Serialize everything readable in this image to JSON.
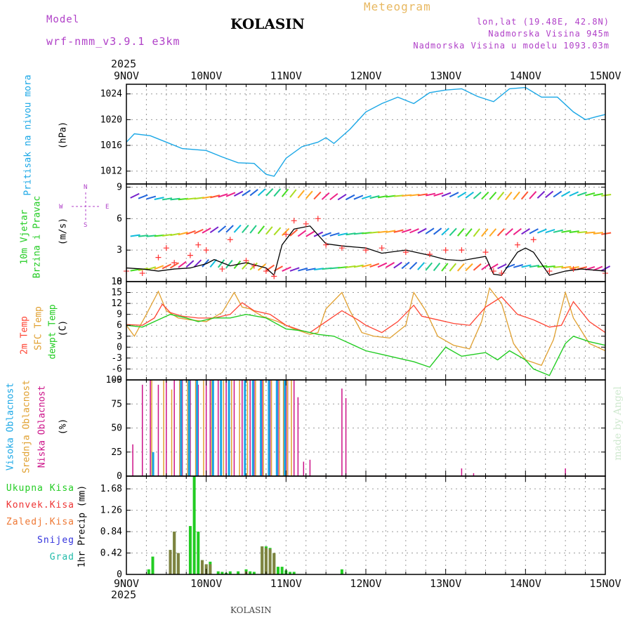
{
  "header": {
    "model_label": "Model",
    "model_name": "wrf-nmm_v3.9.1 e3km",
    "station": "KOLASIN",
    "meteogram": "Meteogram",
    "coords": "lon,lat (19.48E, 42.8N)",
    "altitude": "Nadmorska Visina 945m",
    "model_altitude": "Nadmorska Visina u modelu 1093.03m",
    "year_top": "2025",
    "year_bottom": "2025",
    "footer_station": "KOLASIN",
    "watermark": "made by Angel"
  },
  "colors": {
    "pressure": "#1aa7e6",
    "wind_green": "#22cc22",
    "wind_gust": "#ff3333",
    "temp2m": "#ff4433",
    "sfc": "#e0a030",
    "dew": "#22cc22",
    "cloud_high": "#1aa7e6",
    "cloud_mid": "#e0a030",
    "cloud_low": "#cc1188",
    "header_purple": "#b040c8",
    "header_orange": "#e8b860"
  },
  "chart_data": [
    {
      "type": "line",
      "title": "Pritisak na nivou mora",
      "ylabel": "(hPa)",
      "ylim": [
        1010,
        1025.5
      ],
      "yticks": [
        "1024",
        "1020",
        "1016",
        "1012"
      ],
      "x_dates": [
        "9NOV",
        "10NOV",
        "11NOV",
        "12NOV",
        "13NOV",
        "14NOV",
        "15NOV"
      ],
      "series": [
        {
          "name": "pressure",
          "x": [
            0,
            0.1,
            0.3,
            0.5,
            0.7,
            1.0,
            1.2,
            1.4,
            1.6,
            1.75,
            1.85,
            2.0,
            2.2,
            2.4,
            2.5,
            2.6,
            2.8,
            3.0,
            3.2,
            3.4,
            3.6,
            3.8,
            4.0,
            4.2,
            4.4,
            4.6,
            4.8,
            5.0,
            5.2,
            5.4,
            5.6,
            5.75,
            5.9,
            6.0
          ],
          "values": [
            1016.5,
            1017.8,
            1017.5,
            1016.5,
            1015.5,
            1015.2,
            1014.2,
            1013.3,
            1013.2,
            1011.5,
            1011.2,
            1014.0,
            1015.8,
            1016.5,
            1017.2,
            1016.3,
            1018.5,
            1021.2,
            1022.5,
            1023.5,
            1022.5,
            1024.2,
            1024.6,
            1024.8,
            1023.6,
            1022.8,
            1024.8,
            1025.0,
            1023.5,
            1023.5,
            1021.2,
            1020.0,
            1020.5,
            1020.8
          ]
        }
      ]
    },
    {
      "type": "line",
      "title": "10m Vjetar Brzina i Pravac",
      "ylabel": "(m/s)",
      "ylim": [
        0,
        9.3
      ],
      "yticks": [
        "9",
        "6",
        "3",
        "0"
      ],
      "compass": {
        "n": "N",
        "w": "W",
        "e": "E",
        "s": "S"
      },
      "series": [
        {
          "name": "speed",
          "x": [
            0,
            0.2,
            0.4,
            0.6,
            0.8,
            1.0,
            1.1,
            1.3,
            1.5,
            1.6,
            1.75,
            1.85,
            1.95,
            2.1,
            2.3,
            2.5,
            2.7,
            3.0,
            3.2,
            3.5,
            3.8,
            4.0,
            4.2,
            4.5,
            4.6,
            4.7,
            4.9,
            5.0,
            5.1,
            5.3,
            5.5,
            5.7,
            6.0
          ],
          "values": [
            1.3,
            1.2,
            1.0,
            1.2,
            1.3,
            1.7,
            2.1,
            1.5,
            1.8,
            1.6,
            1.3,
            0.6,
            3.5,
            5.0,
            5.3,
            3.6,
            3.4,
            3.2,
            2.7,
            3.0,
            2.5,
            2.1,
            2.0,
            2.4,
            0.7,
            0.6,
            2.8,
            3.2,
            2.8,
            0.6,
            1.0,
            1.2,
            1.0
          ]
        },
        {
          "name": "gust",
          "x": [
            0,
            0.2,
            0.4,
            0.5,
            0.6,
            0.8,
            0.9,
            1.0,
            1.2,
            1.3,
            1.5,
            1.6,
            1.75,
            1.85,
            2.0,
            2.1,
            2.25,
            2.4,
            2.5,
            2.7,
            3.0,
            3.2,
            3.5,
            3.8,
            4.0,
            4.2,
            4.5,
            4.6,
            4.7,
            4.9,
            5.1,
            5.3,
            5.6,
            6.0
          ],
          "values": [
            1.0,
            0.8,
            2.3,
            3.2,
            1.8,
            2.5,
            3.5,
            3.0,
            1.2,
            4.0,
            2.0,
            1.5,
            1.0,
            0.5,
            4.5,
            5.8,
            5.5,
            6.0,
            3.5,
            3.2,
            3.0,
            3.2,
            2.8,
            2.6,
            3.0,
            3.0,
            2.8,
            1.0,
            0.8,
            3.5,
            4.0,
            1.0,
            1.2,
            0.8
          ]
        }
      ]
    },
    {
      "type": "line",
      "title": "2m Temp / SFC Temp / dewpt Temp",
      "ylabel": "(C)",
      "ylim": [
        -9,
        18
      ],
      "yticks": [
        "18",
        "15",
        "12",
        "9",
        "6",
        "3",
        "0",
        "-3",
        "-6",
        "-9"
      ],
      "series": [
        {
          "name": "2m Temp",
          "x": [
            0,
            0.2,
            0.35,
            0.45,
            0.55,
            0.7,
            0.9,
            1.1,
            1.3,
            1.45,
            1.6,
            1.8,
            2.0,
            2.2,
            2.3,
            2.5,
            2.7,
            2.9,
            3.0,
            3.2,
            3.4,
            3.6,
            3.7,
            3.9,
            4.1,
            4.3,
            4.5,
            4.7,
            4.9,
            5.1,
            5.3,
            5.45,
            5.6,
            5.8,
            6.0
          ],
          "values": [
            6.2,
            6.0,
            8.0,
            11.8,
            9.5,
            8.5,
            8.0,
            8.0,
            9.0,
            12.2,
            10.0,
            9.0,
            6.0,
            4.5,
            4.0,
            7.0,
            10.0,
            7.5,
            6.0,
            4.0,
            7.0,
            11.5,
            8.5,
            7.5,
            6.5,
            6.0,
            11.0,
            13.8,
            9.0,
            7.5,
            5.5,
            6.0,
            12.5,
            7.0,
            4.0
          ]
        },
        {
          "name": "SFC Temp",
          "x": [
            0,
            0.1,
            0.25,
            0.4,
            0.5,
            0.65,
            0.8,
            1.0,
            1.2,
            1.35,
            1.45,
            1.55,
            1.7,
            1.9,
            2.1,
            2.3,
            2.4,
            2.5,
            2.7,
            2.8,
            2.95,
            3.1,
            3.3,
            3.5,
            3.6,
            3.75,
            3.9,
            4.1,
            4.3,
            4.45,
            4.55,
            4.7,
            4.85,
            5.0,
            5.2,
            5.35,
            5.5,
            5.6,
            5.8,
            6.0
          ],
          "values": [
            6.0,
            3.0,
            9.0,
            15.3,
            10.0,
            8.0,
            7.5,
            7.0,
            9.5,
            15.0,
            11.0,
            10.5,
            8.5,
            7.0,
            5.0,
            3.5,
            4.0,
            10.5,
            15.0,
            10.0,
            4.0,
            3.0,
            2.5,
            6.0,
            15.0,
            10.0,
            3.0,
            0.5,
            -0.5,
            7.0,
            16.2,
            12.0,
            1.0,
            -3.5,
            -5.0,
            2.0,
            15.0,
            8.0,
            1.0,
            -1.0
          ]
        },
        {
          "name": "dewpt Temp",
          "x": [
            0,
            0.2,
            0.35,
            0.55,
            0.75,
            0.9,
            1.1,
            1.3,
            1.5,
            1.75,
            2.0,
            2.2,
            2.4,
            2.6,
            2.8,
            3.0,
            3.2,
            3.4,
            3.6,
            3.8,
            4.0,
            4.2,
            4.35,
            4.5,
            4.65,
            4.8,
            5.0,
            5.1,
            5.3,
            5.5,
            5.6,
            5.8,
            6.0
          ],
          "values": [
            6.0,
            5.5,
            7.0,
            9.0,
            8.0,
            7.0,
            8.0,
            8.0,
            9.0,
            8.0,
            5.0,
            4.5,
            3.5,
            3.0,
            1.0,
            -1.0,
            -2.0,
            -3.0,
            -4.0,
            -5.5,
            0.0,
            -2.5,
            -2.0,
            -1.5,
            -3.5,
            -1.0,
            -3.5,
            -6.0,
            -7.8,
            1.0,
            3.0,
            1.5,
            0.5
          ]
        }
      ]
    },
    {
      "type": "bar",
      "title": "Visoka / Srednja / Niska Oblacnost",
      "ylabel": "(%)",
      "ylim": [
        0,
        100
      ],
      "yticks": [
        "100",
        "75",
        "50",
        "25",
        "0"
      ],
      "series": [
        {
          "name": "Niska Oblacnost",
          "x": [
            0.08,
            0.2,
            0.3,
            0.4,
            0.5,
            0.6,
            0.7,
            0.8,
            0.9,
            1.0,
            1.05,
            1.15,
            1.25,
            1.35,
            1.45,
            1.55,
            1.6,
            1.7,
            1.8,
            1.9,
            2.0,
            2.02,
            2.1,
            2.15,
            2.22,
            2.3,
            2.7,
            2.75,
            4.2,
            4.35,
            5.5
          ],
          "values": [
            33,
            95,
            100,
            95,
            100,
            100,
            100,
            100,
            95,
            100,
            100,
            100,
            100,
            100,
            100,
            100,
            100,
            100,
            100,
            100,
            100,
            100,
            100,
            82,
            15,
            17,
            91,
            81,
            8,
            3,
            8
          ]
        },
        {
          "name": "Srednja Oblacnost",
          "x": [
            0.3,
            0.45,
            0.55,
            0.65,
            0.75,
            0.85,
            0.95,
            1.05,
            1.2,
            1.3,
            1.4,
            1.5,
            1.6,
            1.7,
            1.8,
            1.9,
            1.95,
            2.0,
            2.05
          ],
          "values": [
            100,
            100,
            90,
            100,
            100,
            100,
            100,
            100,
            100,
            100,
            100,
            100,
            100,
            100,
            100,
            100,
            100,
            100,
            100
          ]
        },
        {
          "name": "Visoka Oblacnost",
          "x": [
            0.3,
            0.65,
            0.75,
            0.85,
            1.05,
            1.15,
            1.25,
            1.45,
            1.55,
            1.65,
            1.75,
            1.85,
            1.95
          ],
          "values": [
            25,
            100,
            100,
            100,
            100,
            100,
            100,
            100,
            100,
            100,
            100,
            100,
            100
          ]
        }
      ]
    },
    {
      "type": "bar",
      "title": "1hr Precip",
      "ylabel": "1hr Precip (mm)",
      "ylim": [
        0,
        1.93
      ],
      "yticks": [
        "1.68",
        "1.26",
        "0.84",
        "0.42",
        "0"
      ],
      "legend": [
        "Ukupna Kisa",
        "Konvek.Kisa",
        "Zaledj.Kisa",
        "Snijeg",
        "Grad"
      ],
      "series": [
        {
          "name": "Ukupna Kisa",
          "x": [
            0.28,
            0.33,
            0.55,
            0.6,
            0.65,
            0.8,
            0.85,
            0.9,
            0.95,
            1.0,
            1.05,
            1.15,
            1.2,
            1.25,
            1.3,
            1.4,
            1.5,
            1.5,
            1.55,
            1.6,
            1.7,
            1.75,
            1.8,
            1.85,
            1.9,
            1.95,
            2.0,
            2.05,
            2.1,
            2.7
          ],
          "values": [
            0.1,
            0.35,
            0.48,
            0.84,
            0.42,
            0.95,
            1.93,
            0.84,
            0.28,
            0.2,
            0.25,
            0.06,
            0.05,
            0.03,
            0.06,
            0.06,
            0.06,
            0.1,
            0.06,
            0.05,
            0.55,
            0.55,
            0.52,
            0.42,
            0.15,
            0.15,
            0.08,
            0.05,
            0.05,
            0.1
          ]
        },
        {
          "name": "Konvek.Kisa",
          "x": [
            0.55,
            0.6,
            0.65,
            0.95,
            1.0,
            1.05,
            1.5,
            1.7,
            1.75,
            1.8,
            1.85
          ],
          "values": [
            0.48,
            0.84,
            0.42,
            0.28,
            0.2,
            0.2,
            0.06,
            0.55,
            0.52,
            0.5,
            0.42
          ]
        }
      ]
    }
  ],
  "panels": {
    "pressure_title": "Pritisak na nivou mora",
    "pressure_unit": "(hPa)",
    "wind_title1": "10m Vjetar",
    "wind_title2": "Brzina i Pravac",
    "wind_unit": "(m/s)",
    "temp_2m": "2m Temp",
    "temp_sfc": "SFC Temp",
    "temp_dew": "dewpt Temp",
    "temp_unit": "(C)",
    "cloud_high": "Visoka Oblacnost",
    "cloud_mid": "Srednja Oblacnost",
    "cloud_low": "Niska Oblacnost",
    "cloud_unit": "(%)",
    "precip_unit": "1hr Precip (mm)"
  }
}
